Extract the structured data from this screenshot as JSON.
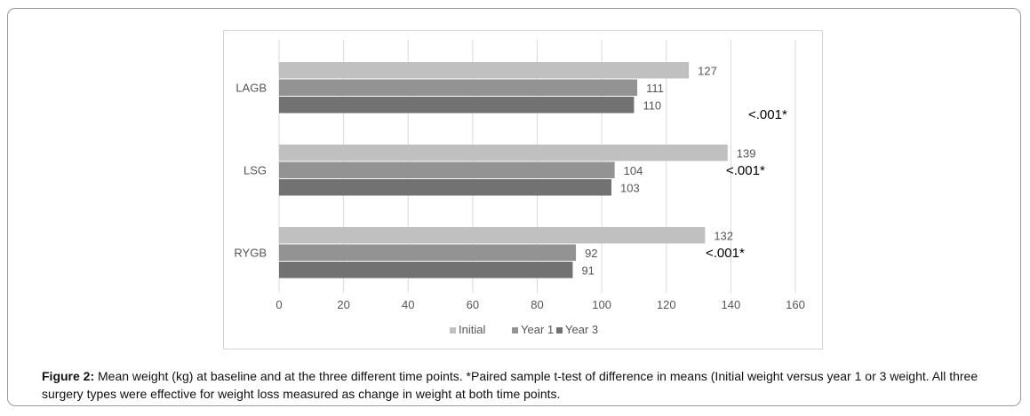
{
  "chart_data": {
    "type": "bar",
    "orientation": "horizontal",
    "categories": [
      "LAGB",
      "LSG",
      "RYGB"
    ],
    "series": [
      {
        "name": "Initial",
        "values": [
          127,
          139,
          132
        ],
        "color": "#c0c0c0"
      },
      {
        "name": "Year 1",
        "values": [
          111,
          104,
          92
        ],
        "color": "#939393"
      },
      {
        "name": "Year 3",
        "values": [
          110,
          103,
          91
        ],
        "color": "#727272"
      }
    ],
    "xlim": [
      0,
      160
    ],
    "xticks": [
      "0",
      "20",
      "40",
      "60",
      "80",
      "100",
      "120",
      "140",
      "160"
    ],
    "grid": true,
    "legend": "bottom",
    "annotations": [
      "<.001*",
      "<.001*",
      "<.001*"
    ]
  },
  "caption": {
    "label": "Figure 2:",
    "text": " Mean weight (kg) at baseline and at the three different time points. *Paired sample t-test of difference in means (Initial weight versus year 1 or 3 weight. All three surgery types were effective for weight loss measured as change in weight at both time points."
  }
}
